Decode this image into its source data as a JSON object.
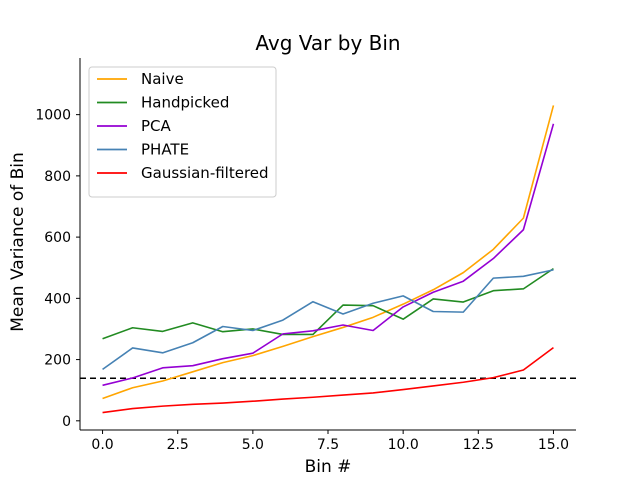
{
  "chart_data": {
    "type": "line",
    "title": "Avg Var by Bin",
    "xlabel": "Bin #",
    "ylabel": "Mean Variance of Bin",
    "xlim": [
      -0.75,
      15.75
    ],
    "ylim": [
      -30,
      1185
    ],
    "xticks": [
      0.0,
      2.5,
      5.0,
      7.5,
      10.0,
      12.5,
      15.0
    ],
    "xtick_labels": [
      "0.0",
      "2.5",
      "5.0",
      "7.5",
      "10.0",
      "12.5",
      "15.0"
    ],
    "yticks": [
      0,
      200,
      400,
      600,
      800,
      1000
    ],
    "ytick_labels": [
      "0",
      "200",
      "400",
      "600",
      "800",
      "1000"
    ],
    "grid": false,
    "legend_position": "upper-left",
    "x": [
      0,
      1,
      2,
      3,
      4,
      5,
      6,
      7,
      8,
      9,
      10,
      11,
      12,
      13,
      14,
      15
    ],
    "series": [
      {
        "name": "Naive",
        "color": "#ffa500",
        "values": [
          73,
          108,
          130,
          160,
          190,
          213,
          243,
          275,
          305,
          338,
          381,
          428,
          484,
          560,
          662,
          1030
        ]
      },
      {
        "name": "Handpicked",
        "color": "#228b22",
        "values": [
          268,
          304,
          292,
          320,
          291,
          300,
          282,
          282,
          378,
          376,
          332,
          398,
          388,
          425,
          431,
          497
        ]
      },
      {
        "name": "PCA",
        "color": "#9400d3",
        "values": [
          116,
          140,
          173,
          180,
          203,
          221,
          284,
          294,
          313,
          295,
          372,
          420,
          456,
          530,
          624,
          970
        ]
      },
      {
        "name": "PHATE",
        "color": "#4682b4",
        "values": [
          168,
          238,
          222,
          255,
          308,
          295,
          329,
          389,
          349,
          384,
          408,
          357,
          355,
          466,
          472,
          493
        ]
      },
      {
        "name": "Gaussian-filtered",
        "color": "#ff0000",
        "values": [
          27,
          40,
          48,
          54,
          58,
          64,
          71,
          77,
          84,
          91,
          102,
          114,
          126,
          141,
          166,
          239
        ]
      }
    ],
    "reference_line": {
      "type": "horizontal-dashed",
      "y": 139,
      "x_range": [
        -0.75,
        15.75
      ],
      "color": "#000000"
    }
  }
}
